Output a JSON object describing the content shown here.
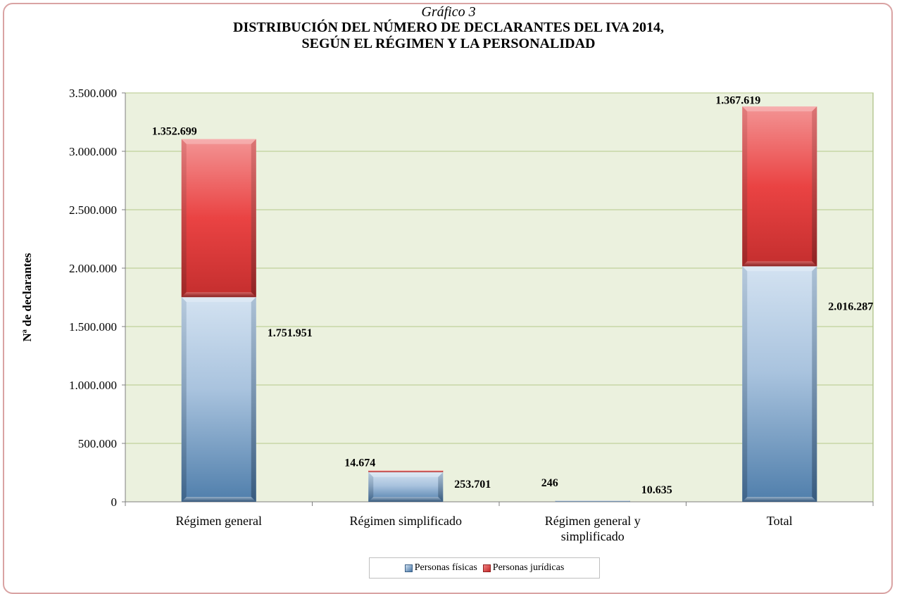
{
  "chart_data": {
    "type": "bar",
    "stacked": true,
    "title_line1": "Gráfico 3",
    "title_line2": "DISTRIBUCIÓN DEL NÚMERO DE DECLARANTES DEL IVA 2014,",
    "title_line3": "SEGÚN EL RÉGIMEN Y LA PERSONALIDAD",
    "ylabel": "Nª de declarantes",
    "xlabel": "",
    "ylim": [
      0,
      3500000
    ],
    "yticks": [
      0,
      500000,
      1000000,
      1500000,
      2000000,
      2500000,
      3000000,
      3500000
    ],
    "ytick_labels": [
      "0",
      "500.000",
      "1.000.000",
      "1.500.000",
      "2.000.000",
      "2.500.000",
      "3.000.000",
      "3.500.000"
    ],
    "categories": [
      [
        "Régimen general"
      ],
      [
        "Régimen simplificado"
      ],
      [
        "Régimen general y",
        "simplificado"
      ],
      [
        "Total"
      ]
    ],
    "series": [
      {
        "name": "Personas físicas",
        "values": [
          1751951,
          253701,
          10635,
          2016287
        ],
        "labels": [
          "1.751.951",
          "253.701",
          "10.635",
          "2.016.287"
        ],
        "color": "#7fa3c8"
      },
      {
        "name": "Personas jurídicas",
        "values": [
          1352699,
          14674,
          246,
          1367619
        ],
        "labels": [
          "1.352.699",
          "14.674",
          "246",
          "1.367.619"
        ],
        "color": "#e04848"
      }
    ],
    "grid": true,
    "legend_position": "bottom",
    "plot_background": "#ebf1de"
  }
}
